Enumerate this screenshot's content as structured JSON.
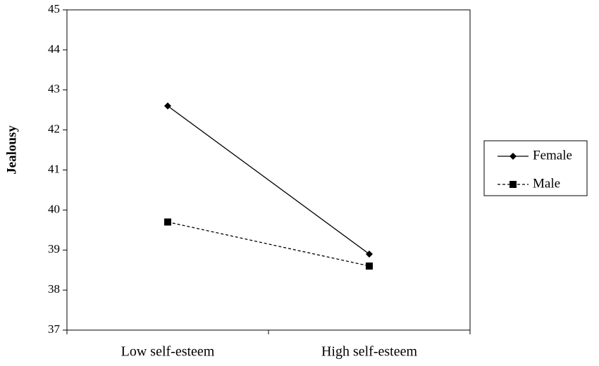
{
  "chart_data": {
    "type": "line",
    "y_label": "Jealousy",
    "categories": [
      "Low self-esteem",
      "High self-esteem"
    ],
    "series": [
      {
        "name": "Female",
        "color": "#000000",
        "marker": "diamond",
        "linestyle": "solid",
        "values": [
          42.6,
          38.9
        ]
      },
      {
        "name": "Male",
        "color": "#000000",
        "marker": "square",
        "linestyle": "dashed",
        "values": [
          39.7,
          38.6
        ]
      }
    ],
    "ylim": [
      37,
      45
    ],
    "yticks": [
      37,
      38,
      39,
      40,
      41,
      42,
      43,
      44,
      45
    ],
    "grid": false,
    "legend": "right"
  }
}
